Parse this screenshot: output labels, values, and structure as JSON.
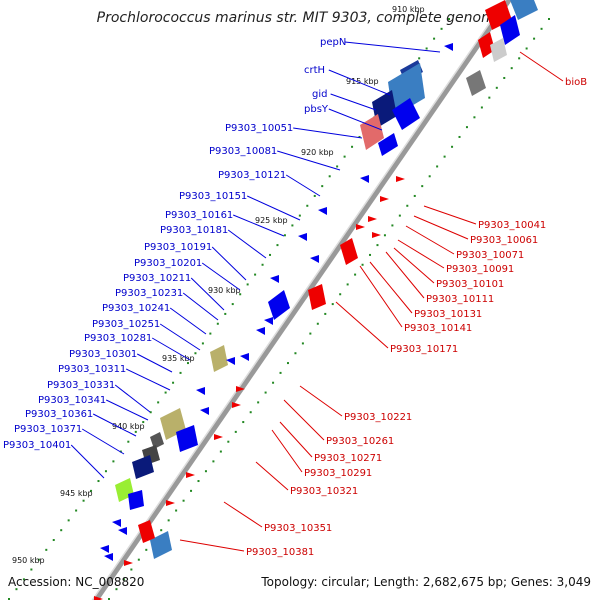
{
  "title": "Prochlorococcus marinus str. MIT 9303, complete genome",
  "accession": "Accession: NC_008820",
  "topology": "Topology: circular; Length: 2,682,675 bp; Genes: 3,049",
  "scale_labels": [
    "910 kbp",
    "915 kbp",
    "920 kbp",
    "925 kbp",
    "930 kbp",
    "935 kbp",
    "940 kbp",
    "945 kbp",
    "950 kbp"
  ],
  "left_genes": [
    "pepN",
    "crtH",
    "gid",
    "pbsY",
    "P9303_10051",
    "P9303_10081",
    "P9303_10121",
    "P9303_10151",
    "P9303_10161",
    "P9303_10181",
    "P9303_10191",
    "P9303_10201",
    "P9303_10211",
    "P9303_10231",
    "P9303_10241",
    "P9303_10251",
    "P9303_10281",
    "P9303_10301",
    "P9303_10311",
    "P9303_10331",
    "P9303_10341",
    "P9303_10361",
    "P9303_10371",
    "P9303_10401"
  ],
  "right_genes": [
    "bioB",
    "P9303_10041",
    "P9303_10061",
    "P9303_10071",
    "P9303_10091",
    "P9303_10101",
    "P9303_10111",
    "P9303_10131",
    "P9303_10141",
    "P9303_10171",
    "P9303_10221",
    "P9303_10261",
    "P9303_10271",
    "P9303_10291",
    "P9303_10321",
    "P9303_10351",
    "P9303_10381"
  ],
  "colors": {
    "forward": "#0000ee",
    "reverse": "#ee0000",
    "backbone": "#888888",
    "tick": "#228822"
  }
}
